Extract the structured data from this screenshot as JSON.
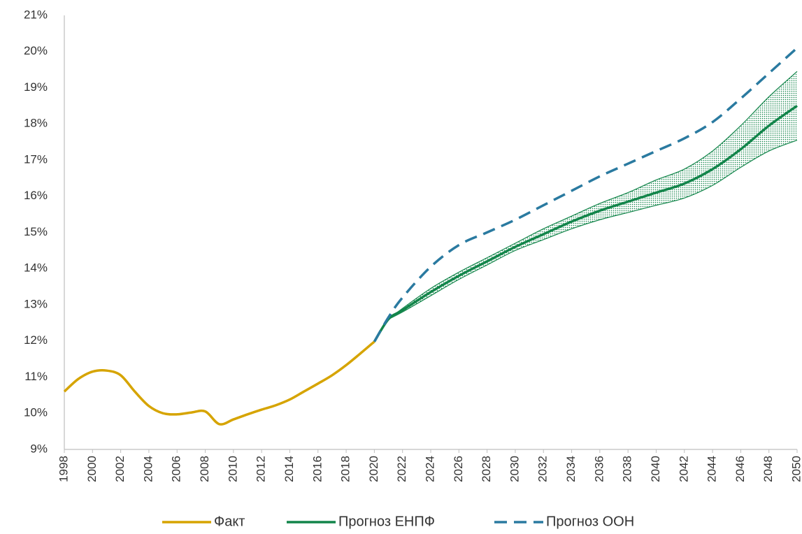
{
  "chart_data": {
    "type": "line",
    "xlim": [
      1998,
      2050
    ],
    "ylim": [
      9,
      21
    ],
    "xticks": [
      1998,
      2000,
      2002,
      2004,
      2006,
      2008,
      2010,
      2012,
      2014,
      2016,
      2018,
      2020,
      2022,
      2024,
      2026,
      2028,
      2030,
      2032,
      2034,
      2036,
      2038,
      2040,
      2042,
      2044,
      2046,
      2048,
      2050
    ],
    "yticks": [
      {
        "value": 9,
        "label": "9%"
      },
      {
        "value": 10,
        "label": "10%"
      },
      {
        "value": 11,
        "label": "11%"
      },
      {
        "value": 12,
        "label": "12%"
      },
      {
        "value": 13,
        "label": "13%"
      },
      {
        "value": 14,
        "label": "14%"
      },
      {
        "value": 15,
        "label": "15%"
      },
      {
        "value": 16,
        "label": "16%"
      },
      {
        "value": 17,
        "label": "17%"
      },
      {
        "value": 18,
        "label": "18%"
      },
      {
        "value": 19,
        "label": "19%"
      },
      {
        "value": 20,
        "label": "20%"
      },
      {
        "value": 21,
        "label": "21%"
      }
    ],
    "xgrid": [
      2008,
      2018,
      2028,
      2038,
      2048
    ],
    "grid": true,
    "legend": "bottom",
    "regions": [
      {
        "start": 2011.35,
        "end": 2020,
        "color": "#fbdcdc"
      },
      {
        "start": 2020,
        "end": 2027,
        "color": "#f8bdbd"
      },
      {
        "start": 2027,
        "end": 2039.3,
        "color": "#f59f9f"
      },
      {
        "start": 2039.3,
        "end": 2048,
        "color": "#f38080"
      },
      {
        "start": 2048,
        "end": 2050,
        "color": "#f05f5f"
      }
    ],
    "band": {
      "color": "#12854a",
      "x": [
        2021,
        2022,
        2024,
        2026,
        2028,
        2030,
        2032,
        2034,
        2036,
        2038,
        2040,
        2042,
        2044,
        2046,
        2048,
        2050
      ],
      "lower": [
        12.6,
        12.8,
        13.25,
        13.7,
        14.1,
        14.5,
        14.8,
        15.1,
        15.35,
        15.55,
        15.75,
        15.95,
        16.3,
        16.8,
        17.25,
        17.55
      ],
      "upper": [
        12.6,
        12.9,
        13.45,
        13.9,
        14.3,
        14.7,
        15.1,
        15.45,
        15.8,
        16.1,
        16.45,
        16.75,
        17.25,
        17.95,
        18.75,
        19.45
      ]
    },
    "series": [
      {
        "name": "Факт",
        "color": "#d6a400",
        "dash": false,
        "x": [
          1998,
          1999,
          2000,
          2001,
          2002,
          2003,
          2004,
          2005,
          2006,
          2007,
          2008,
          2009,
          2010,
          2011,
          2012,
          2013,
          2014,
          2015,
          2016,
          2017,
          2018,
          2019,
          2020
        ],
        "values": [
          10.6,
          10.95,
          11.15,
          11.18,
          11.05,
          10.6,
          10.2,
          10.0,
          9.97,
          10.02,
          10.05,
          9.7,
          9.83,
          9.97,
          10.1,
          10.22,
          10.38,
          10.6,
          10.82,
          11.05,
          11.33,
          11.65,
          11.98
        ]
      },
      {
        "name": "Прогноз ЕНПФ",
        "color": "#12854a",
        "dash": false,
        "x": [
          2020,
          2021,
          2022,
          2024,
          2026,
          2028,
          2030,
          2032,
          2034,
          2036,
          2038,
          2040,
          2042,
          2044,
          2046,
          2048,
          2050
        ],
        "values": [
          11.98,
          12.6,
          12.85,
          13.35,
          13.8,
          14.2,
          14.6,
          14.95,
          15.3,
          15.6,
          15.85,
          16.1,
          16.35,
          16.75,
          17.3,
          17.95,
          18.5
        ]
      },
      {
        "name": "Прогноз ООН",
        "color": "#2a7aa0",
        "dash": true,
        "x": [
          2020,
          2021,
          2022,
          2024,
          2026,
          2028,
          2030,
          2032,
          2034,
          2036,
          2038,
          2040,
          2042,
          2044,
          2046,
          2048,
          2050
        ],
        "values": [
          11.98,
          12.65,
          13.2,
          14.05,
          14.65,
          15.0,
          15.35,
          15.75,
          16.15,
          16.55,
          16.9,
          17.25,
          17.6,
          18.05,
          18.7,
          19.4,
          20.1
        ]
      }
    ]
  }
}
